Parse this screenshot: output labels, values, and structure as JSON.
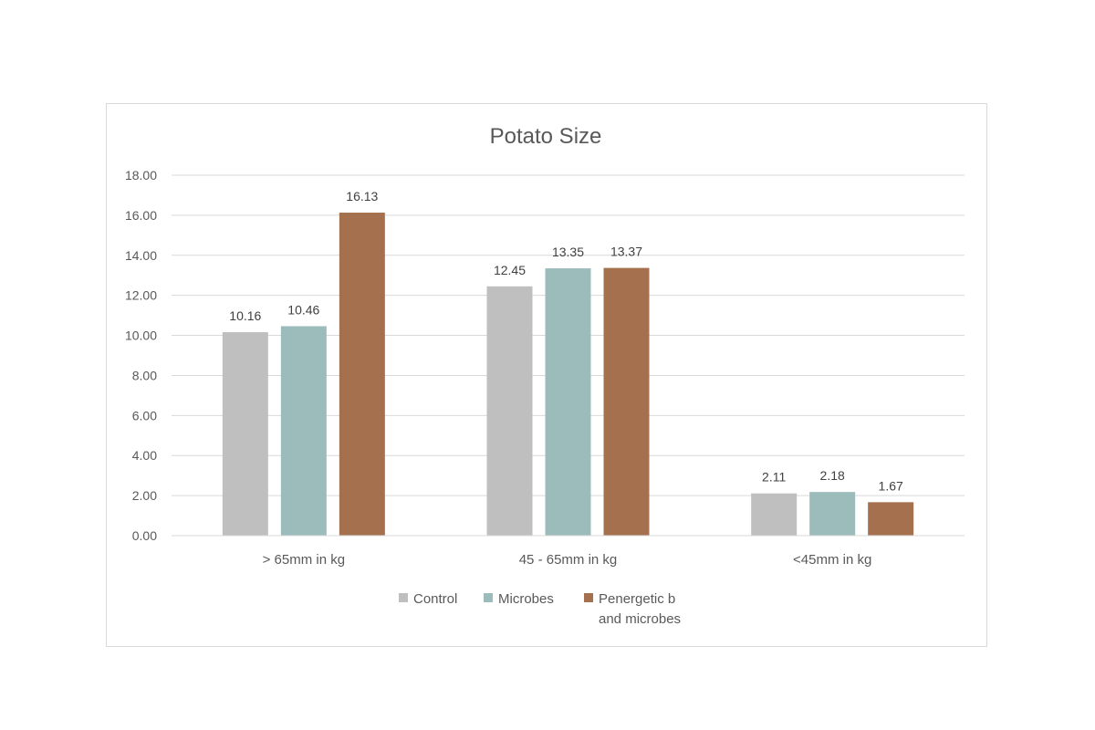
{
  "chart_data": {
    "type": "bar",
    "title": "Potato Size",
    "xlabel": "",
    "ylabel": "",
    "categories": [
      ">  65mm in kg",
      "45 - 65mm in kg",
      "<45mm in kg"
    ],
    "series": [
      {
        "name": "Control",
        "values": [
          10.16,
          12.45,
          2.11
        ],
        "color": "#bfbfbf"
      },
      {
        "name": "Microbes",
        "values": [
          10.46,
          13.35,
          2.18
        ],
        "color": "#9cbcbb"
      },
      {
        "name": "Penergetic b and microbes",
        "values": [
          16.13,
          13.37,
          1.67
        ],
        "color": "#a5704d"
      }
    ],
    "ylim": [
      0,
      18
    ],
    "y_ticks": [
      "0.00",
      "2.00",
      "4.00",
      "6.00",
      "8.00",
      "10.00",
      "12.00",
      "14.00",
      "16.00",
      "18.00"
    ],
    "data_labels": [
      [
        "10.16",
        "12.45",
        "2.11"
      ],
      [
        "10.46",
        "13.35",
        "2.18"
      ],
      [
        "16.13",
        "13.37",
        "1.67"
      ]
    ],
    "legend_lines": [
      [
        "Control"
      ],
      [
        "Microbes"
      ],
      [
        "Penergetic b",
        "and microbes"
      ]
    ],
    "grid": true,
    "legend_position": "bottom"
  }
}
